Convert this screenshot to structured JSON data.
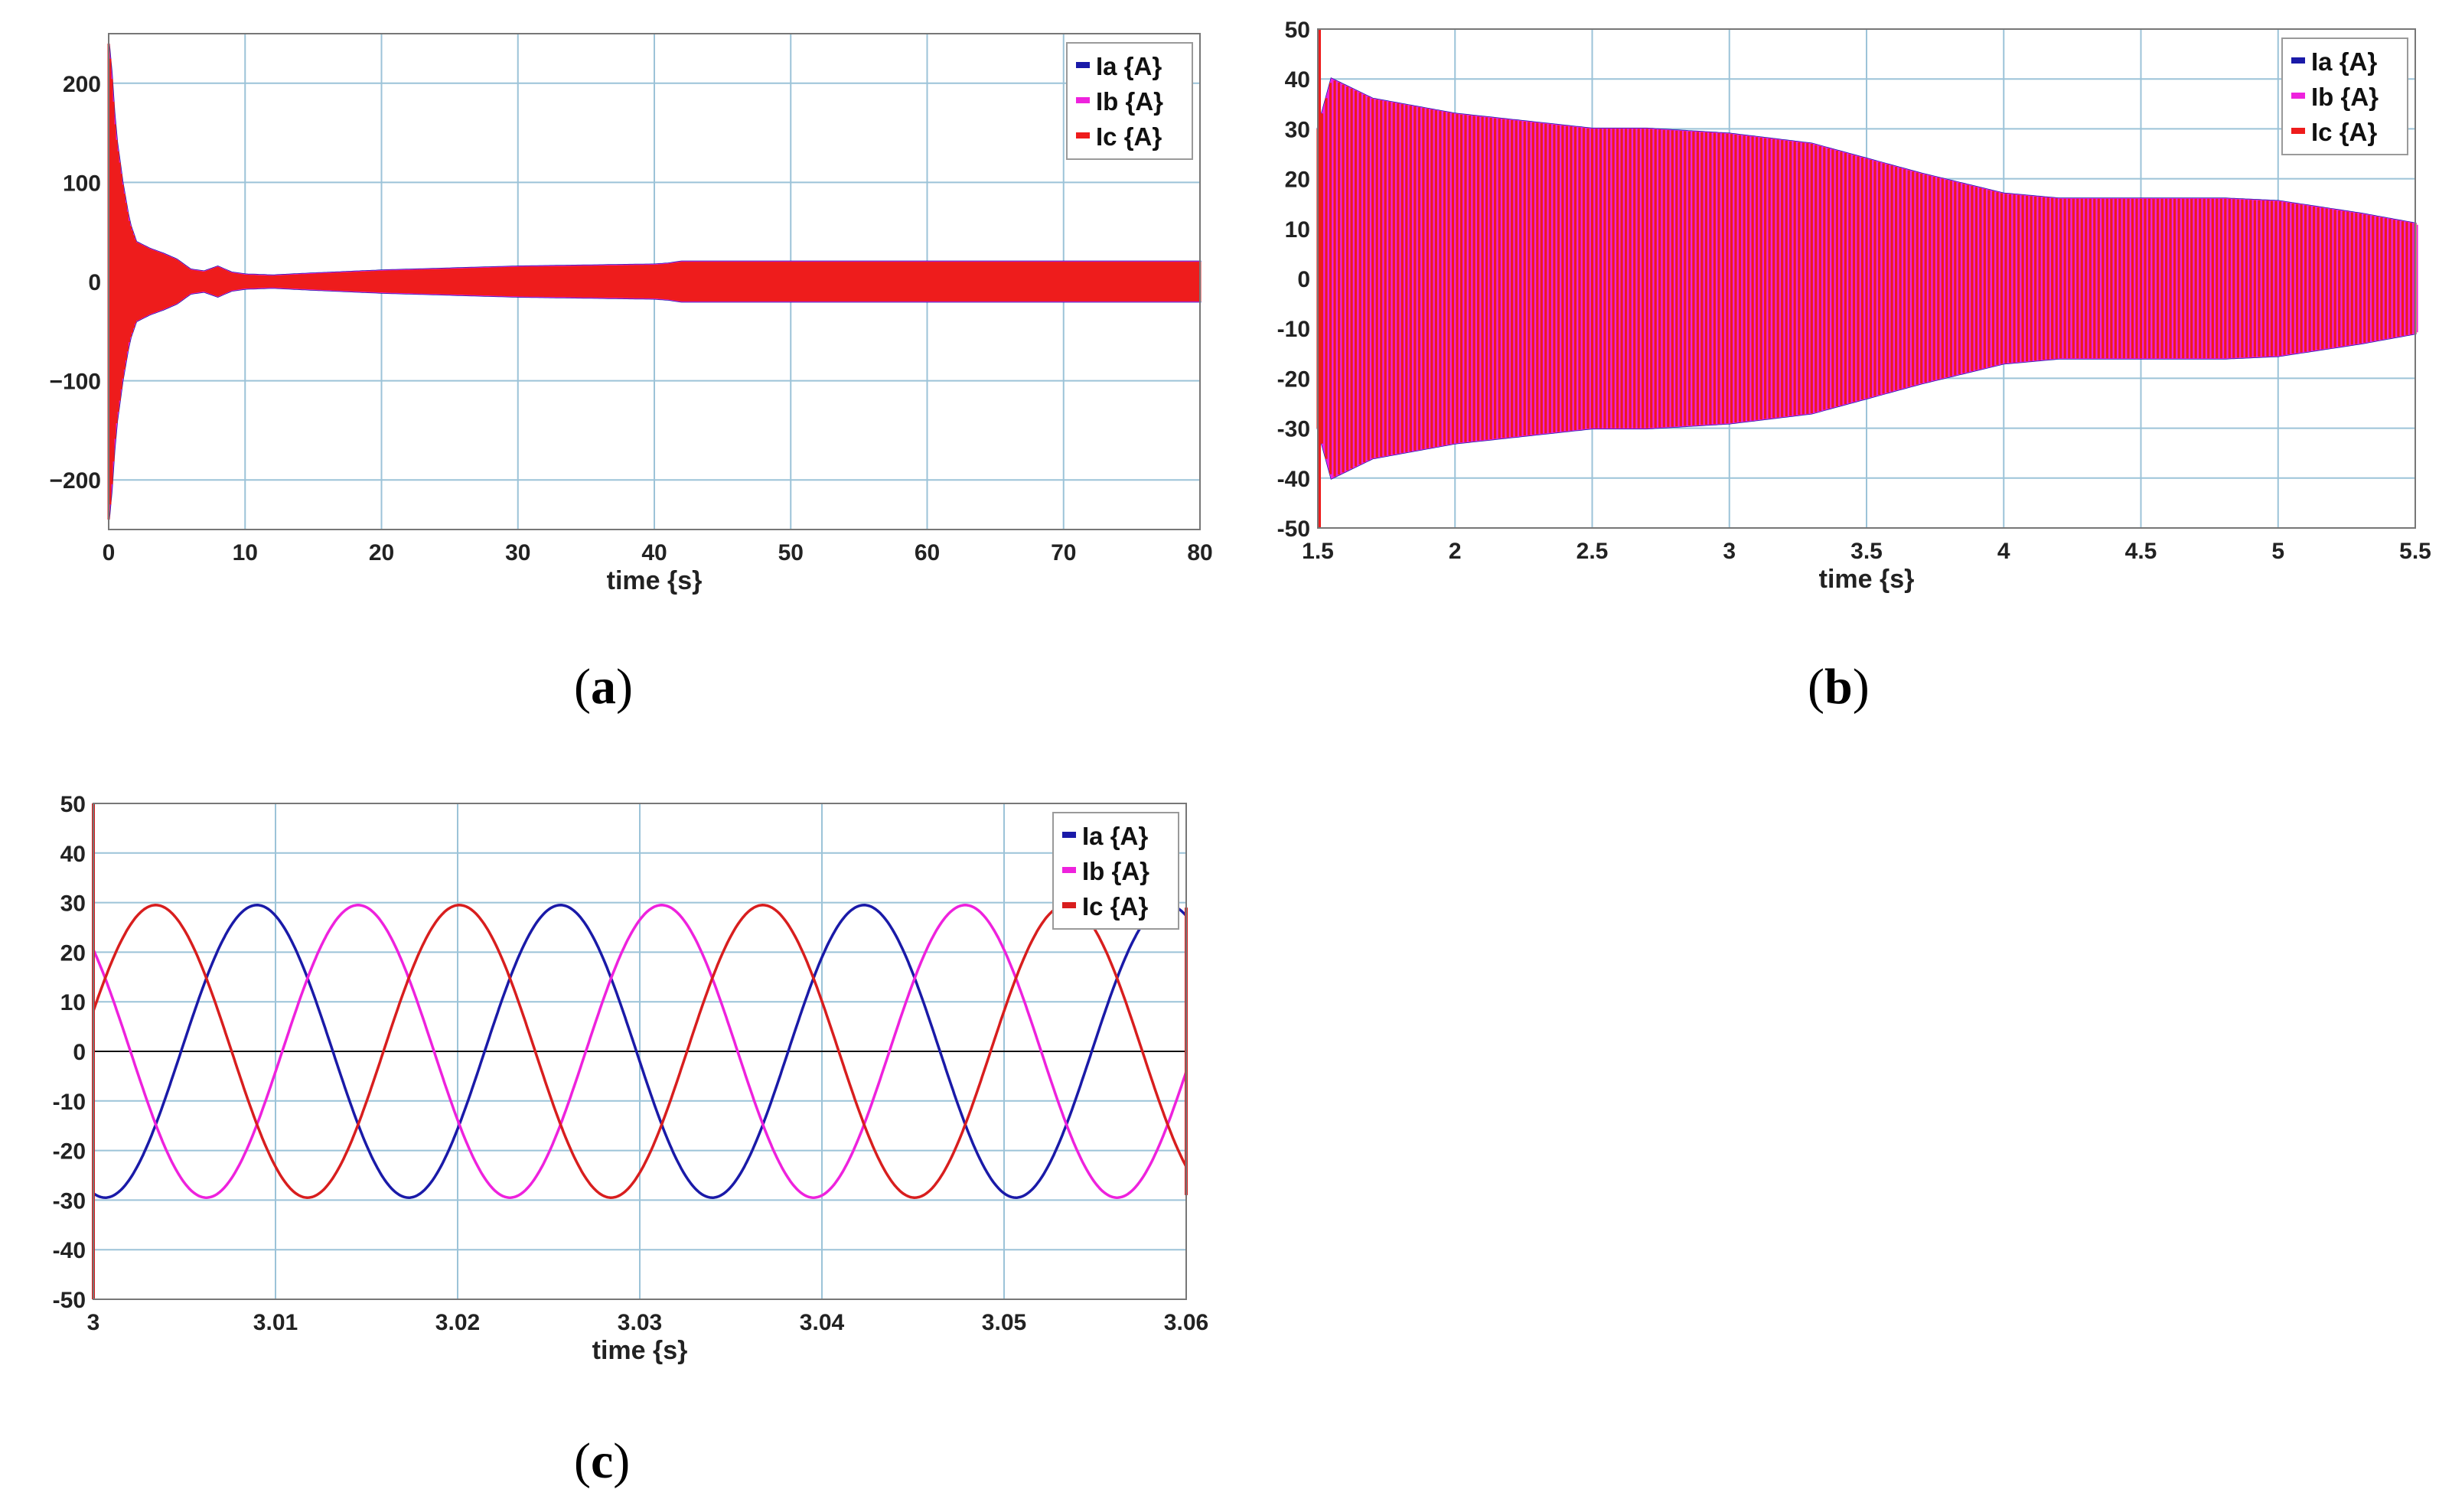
{
  "captions": {
    "a": "a",
    "b": "b",
    "c": "c"
  },
  "chart_data": [
    {
      "id": "a",
      "type": "line",
      "xlabel": "time {s}",
      "ylabel": "",
      "xlim": [
        0,
        80
      ],
      "ylim": [
        -250,
        250
      ],
      "xticks": [
        "0",
        "10",
        "20",
        "30",
        "40",
        "50",
        "60",
        "70",
        "80"
      ],
      "yticks": [
        "200",
        "100",
        "0",
        "−100",
        "−200"
      ],
      "ytick_values": [
        200,
        100,
        0,
        -100,
        -200
      ],
      "xtick_values": [
        0,
        10,
        20,
        30,
        40,
        50,
        60,
        70,
        80
      ],
      "grid": true,
      "legend_position": "top-right",
      "series": [
        {
          "name": "Ia {A}",
          "color": "#1a1aa8"
        },
        {
          "name": "Ib {A}",
          "color": "#ee22dd"
        },
        {
          "name": "Ic {A}",
          "color": "#ee1c1c"
        }
      ],
      "envelope": {
        "t": [
          0,
          0.15,
          0.5,
          1,
          1.5,
          2,
          3,
          4,
          5,
          6,
          7,
          8,
          9,
          10,
          12,
          15,
          20,
          25,
          30,
          35,
          40,
          41,
          42,
          45,
          50,
          60,
          70,
          80
        ],
        "amp": [
          240,
          220,
          150,
          100,
          60,
          40,
          33,
          28,
          22,
          12,
          10,
          15,
          9,
          7,
          6,
          8,
          11,
          13,
          15,
          16,
          17,
          18,
          20,
          20,
          20,
          20,
          20,
          20
        ]
      }
    },
    {
      "id": "b",
      "type": "line",
      "xlabel": "time {s}",
      "ylabel": "",
      "xlim": [
        1.5,
        5.5
      ],
      "ylim": [
        -50,
        50
      ],
      "xticks": [
        "1.5",
        "2",
        "2.5",
        "3",
        "3.5",
        "4",
        "4.5",
        "5",
        "5.5"
      ],
      "xtick_values": [
        1.5,
        2,
        2.5,
        3,
        3.5,
        4,
        4.5,
        5,
        5.5
      ],
      "yticks": [
        "50",
        "40",
        "30",
        "20",
        "10",
        "0",
        "-10",
        "-20",
        "-30",
        "-40",
        "-50"
      ],
      "ytick_values": [
        50,
        40,
        30,
        20,
        10,
        0,
        -10,
        -20,
        -30,
        -40,
        -50
      ],
      "grid": true,
      "legend_position": "top-right",
      "series": [
        {
          "name": "Ia {A}",
          "color": "#1a1aa8"
        },
        {
          "name": "Ib {A}",
          "color": "#ee22dd"
        },
        {
          "name": "Ic {A}",
          "color": "#ee1c1c"
        }
      ],
      "envelope": {
        "t": [
          1.5,
          1.55,
          1.7,
          2.0,
          2.5,
          2.7,
          3.0,
          3.3,
          3.5,
          3.7,
          4.0,
          4.2,
          4.5,
          4.8,
          5.0,
          5.3,
          5.5
        ],
        "amp": [
          30,
          40,
          36,
          33,
          30,
          30,
          29,
          27,
          24,
          21,
          17,
          16,
          16,
          16,
          15.5,
          13,
          11
        ]
      }
    },
    {
      "id": "c",
      "type": "line",
      "xlabel": "time {s}",
      "ylabel": "",
      "xlim": [
        3,
        3.06
      ],
      "ylim": [
        -50,
        50
      ],
      "xticks": [
        "3",
        "3.01",
        "3.02",
        "3.03",
        "3.04",
        "3.05",
        "3.06"
      ],
      "xtick_values": [
        3,
        3.01,
        3.02,
        3.03,
        3.04,
        3.05,
        3.06
      ],
      "yticks": [
        "50",
        "40",
        "30",
        "20",
        "10",
        "0",
        "-10",
        "-20",
        "-30",
        "-40",
        "-50"
      ],
      "ytick_values": [
        50,
        40,
        30,
        20,
        10,
        0,
        -10,
        -20,
        -30,
        -40,
        -50
      ],
      "grid": true,
      "legend_position": "top-right",
      "amplitude": 29.5,
      "frequency_hz": 60,
      "series": [
        {
          "name": "Ia {A}",
          "color": "#1a1aa8",
          "phase_deg": 166
        },
        {
          "name": "Ib {A}",
          "color": "#ee22dd",
          "phase_deg": 46
        },
        {
          "name": "Ic {A}",
          "color": "#d81e1e",
          "phase_deg": -74
        }
      ]
    }
  ]
}
